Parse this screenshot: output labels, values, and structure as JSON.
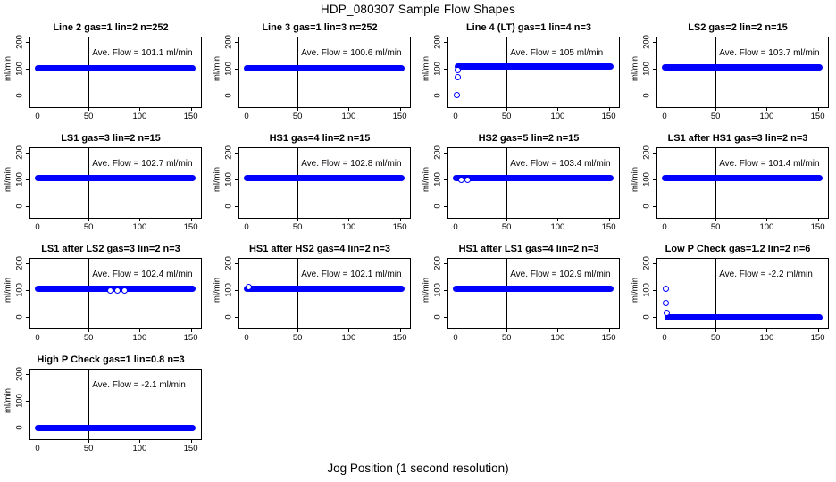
{
  "title": "HDP_080307  Sample Flow Shapes",
  "xlabel": "Jog Position (1 second resolution)",
  "chart_data": {
    "type": "scatter",
    "layout": "4x4 grid, 13 panels",
    "ylabel": "ml/min",
    "x_ticks": [
      0,
      50,
      100,
      150
    ],
    "y_ticks": [
      0,
      100,
      200
    ],
    "xlim": [
      -7,
      160
    ],
    "ylim": [
      -45,
      215
    ],
    "vline_x": 50,
    "point_color": "#0000FF",
    "grid_on": false,
    "plots": [
      {
        "title": "Line 2 gas=1 lin=2 n=252",
        "ave_flow": 101.1,
        "annotation": "Ave. Flow =  101.1  ml/min",
        "band": {
          "x0": 0,
          "x1": 152,
          "y": 101
        },
        "outliers": []
      },
      {
        "title": "Line 3 gas=1 lin=3 n=252",
        "ave_flow": 100.6,
        "annotation": "Ave. Flow =  100.6  ml/min",
        "band": {
          "x0": 0,
          "x1": 152,
          "y": 101
        },
        "outliers": []
      },
      {
        "title": "Line 4 (LT) gas=1 lin=4 n=3",
        "ave_flow": 105,
        "annotation": "Ave. Flow =  105  ml/min",
        "band": {
          "x0": 2,
          "x1": 152,
          "y": 107
        },
        "outliers": [
          [
            2,
            -2
          ],
          [
            2.5,
            65
          ],
          [
            3,
            93
          ]
        ]
      },
      {
        "title": "LS2 gas=2 lin=2 n=15",
        "ave_flow": 103.7,
        "annotation": "Ave. Flow =  103.7  ml/min",
        "band": {
          "x0": 0,
          "x1": 152,
          "y": 103
        },
        "outliers": []
      },
      {
        "title": "LS1 gas=3 lin=2 n=15",
        "ave_flow": 102.7,
        "annotation": "Ave. Flow =  102.7  ml/min",
        "band": {
          "x0": 0,
          "x1": 152,
          "y": 102
        },
        "outliers": []
      },
      {
        "title": "HS1 gas=4 lin=2 n=15",
        "ave_flow": 102.8,
        "annotation": "Ave. Flow =  102.8  ml/min",
        "band": {
          "x0": 0,
          "x1": 152,
          "y": 102
        },
        "outliers": []
      },
      {
        "title": "HS2 gas=5 lin=2 n=15",
        "ave_flow": 103.4,
        "annotation": "Ave. Flow =  103.4  ml/min",
        "band": {
          "x0": 0,
          "x1": 152,
          "y": 103
        },
        "outliers": [
          [
            6,
            96
          ],
          [
            12,
            96
          ]
        ]
      },
      {
        "title": "LS1 after HS1 gas=3 lin=2 n=3",
        "ave_flow": 101.4,
        "annotation": "Ave. Flow =  101.4  ml/min",
        "band": {
          "x0": 0,
          "x1": 152,
          "y": 102
        },
        "outliers": []
      },
      {
        "title": "LS1 after LS2 gas=3 lin=2 n=3",
        "ave_flow": 102.4,
        "annotation": "Ave. Flow =  102.4  ml/min",
        "band": {
          "x0": 0,
          "x1": 152,
          "y": 102
        },
        "outliers": [
          [
            72,
            96
          ],
          [
            79,
            96
          ],
          [
            86,
            96
          ]
        ]
      },
      {
        "title": "HS1 after HS2 gas=4 lin=2 n=3",
        "ave_flow": 102.1,
        "annotation": "Ave. Flow =  102.1  ml/min",
        "band": {
          "x0": 0,
          "x1": 152,
          "y": 102
        },
        "outliers": [
          [
            3,
            108
          ]
        ]
      },
      {
        "title": "HS1 after LS1 gas=4 lin=2 n=3",
        "ave_flow": 102.9,
        "annotation": "Ave. Flow =  102.9  ml/min",
        "band": {
          "x0": 0,
          "x1": 152,
          "y": 103
        },
        "outliers": []
      },
      {
        "title": "Low P Check gas=1.2 lin=2 n=6",
        "ave_flow": -2.2,
        "annotation": "Ave. Flow =  -2.2  ml/min",
        "band": {
          "x0": 3,
          "x1": 152,
          "y": -2
        },
        "outliers": [
          [
            2,
            102
          ],
          [
            2,
            48
          ],
          [
            2.5,
            12
          ]
        ]
      },
      {
        "title": "High P Check gas=1 lin=0.8 n=3",
        "ave_flow": -2.1,
        "annotation": "Ave. Flow =  -2.1  ml/min",
        "band": {
          "x0": 0,
          "x1": 152,
          "y": -3
        },
        "outliers": []
      }
    ]
  }
}
